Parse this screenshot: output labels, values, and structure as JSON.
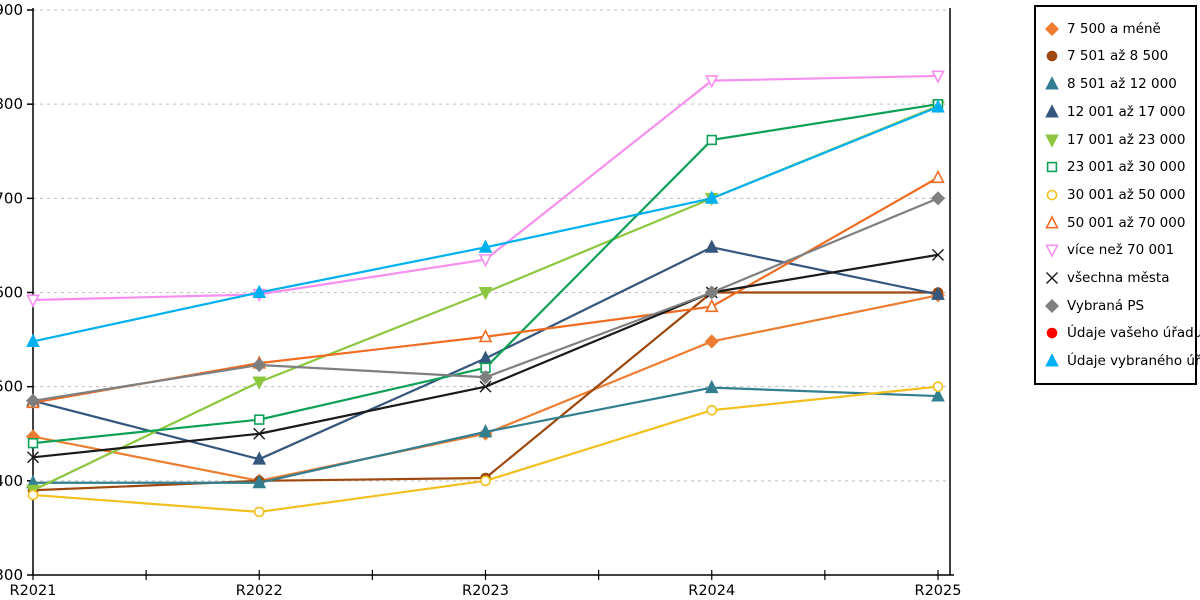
{
  "chart_data": {
    "type": "line",
    "title": "",
    "xlabel": "",
    "ylabel": "",
    "categories": [
      "R2021",
      "R2022",
      "R2023",
      "R2024",
      "R2025"
    ],
    "ylim": [
      300,
      900
    ],
    "ytick_interval": 100,
    "grid": "horizontal-dashed",
    "gridline_color": "#bfbfbf",
    "axis_color": "#000000",
    "legend_position": "right",
    "series": [
      {
        "name": "7 500 a méně",
        "color": "#ED7D31",
        "marker": "diamond",
        "fill": true,
        "values": [
          447,
          400,
          450,
          548,
          597
        ]
      },
      {
        "name": "7 501 až 8 500",
        "color": "#9E480E",
        "marker": "circle",
        "fill": true,
        "values": [
          390,
          400,
          403,
          600,
          600
        ]
      },
      {
        "name": "8 501 až 12 000",
        "color": "#337E8F",
        "marker": "triangle-up",
        "fill": true,
        "values": [
          398,
          398,
          452,
          499,
          490
        ]
      },
      {
        "name": "12 001 až 17 000",
        "color": "#35567D",
        "marker": "triangle-up",
        "fill": true,
        "values": [
          485,
          423,
          530,
          648,
          598
        ]
      },
      {
        "name": "17 001 až 23 000",
        "color": "#8DC63F",
        "marker": "triangle-down",
        "fill": true,
        "values": [
          390,
          505,
          600,
          700,
          798
        ]
      },
      {
        "name": "23 001 až 30 000",
        "color": "#0FA058",
        "marker": "square",
        "fill": false,
        "values": [
          440,
          465,
          520,
          762,
          800
        ]
      },
      {
        "name": "30 001 až 50 000",
        "color": "#F2C01E",
        "marker": "circle",
        "fill": false,
        "values": [
          385,
          367,
          400,
          475,
          500
        ]
      },
      {
        "name": "50 001 až 70 000",
        "color": "#F06C23",
        "marker": "triangle-up",
        "fill": false,
        "values": [
          483,
          525,
          553,
          585,
          722
        ]
      },
      {
        "name": "více než 70 001",
        "color": "#F68FEF",
        "marker": "triangle-down",
        "fill": false,
        "values": [
          592,
          598,
          635,
          825,
          830
        ]
      },
      {
        "name": "všechna města",
        "color": "#1A1A1A",
        "marker": "x",
        "fill": false,
        "values": [
          425,
          450,
          500,
          600,
          640
        ]
      },
      {
        "name": "Vybraná PS",
        "color": "#7F7F7F",
        "marker": "diamond",
        "fill": true,
        "values": [
          485,
          523,
          510,
          600,
          700
        ]
      },
      {
        "name": "Údaje vašeho úřadu",
        "color": "#FF0000",
        "marker": "circle",
        "fill": true,
        "values": [
          null,
          null,
          null,
          null,
          null
        ]
      },
      {
        "name": "Údaje vybraného úřadu",
        "color": "#00B0F0",
        "marker": "triangle-up",
        "fill": true,
        "values": [
          548,
          600,
          648,
          700,
          797
        ]
      }
    ]
  }
}
